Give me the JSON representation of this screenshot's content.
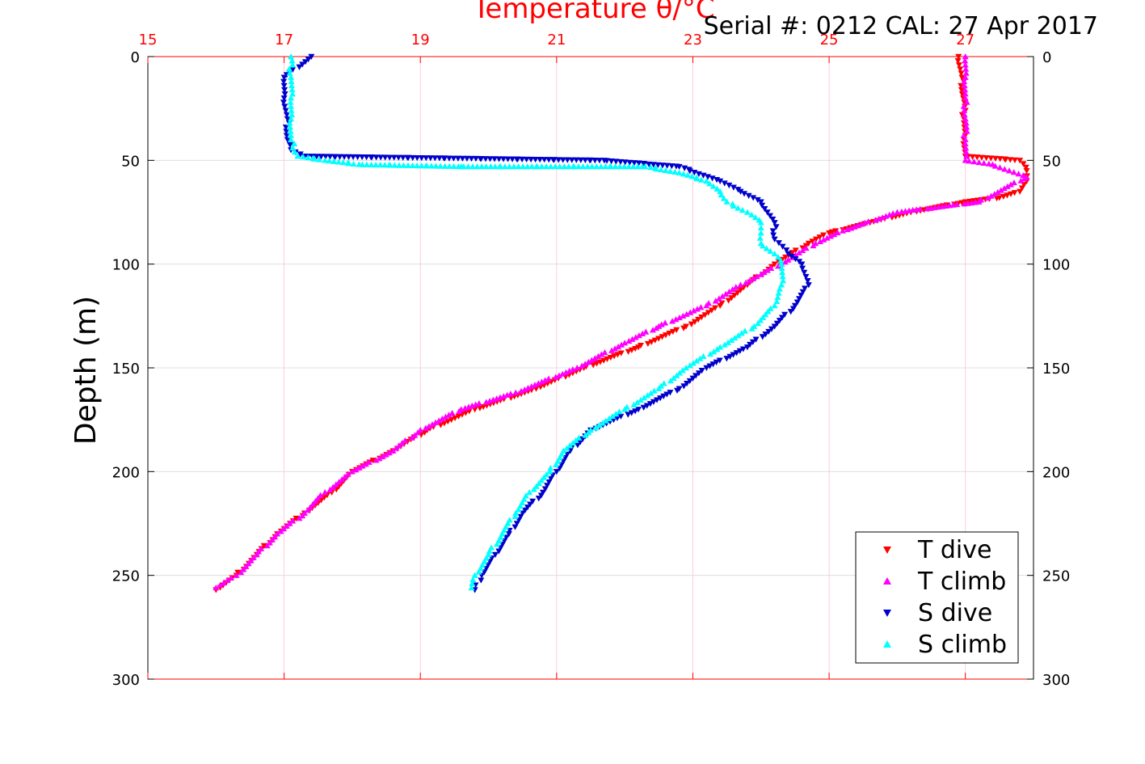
{
  "chart_data": {
    "type": "scatter",
    "title": "Serial #: 0212  CAL: 27 Apr 2017",
    "xlabel": "Temperature θ/°C",
    "ylabel": "Depth (m)",
    "xlim": [
      15,
      28
    ],
    "ylim": [
      0,
      300
    ],
    "x_ticks": [
      "15",
      "17",
      "19",
      "21",
      "23",
      "25",
      "27"
    ],
    "y_ticks": [
      "0",
      "50",
      "100",
      "150",
      "200",
      "250",
      "300"
    ],
    "grid": true,
    "legend_position": "bottom-right",
    "series": [
      {
        "name": "T dive",
        "color": "#ff0000",
        "marker": "triangle-down",
        "points": [
          [
            26.9,
            0
          ],
          [
            26.95,
            10
          ],
          [
            26.97,
            20
          ],
          [
            26.98,
            30
          ],
          [
            26.98,
            40
          ],
          [
            27.0,
            48
          ],
          [
            27.8,
            50
          ],
          [
            27.9,
            55
          ],
          [
            27.9,
            60
          ],
          [
            27.8,
            65
          ],
          [
            27.5,
            68
          ],
          [
            27.0,
            70
          ],
          [
            26.2,
            75
          ],
          [
            25.6,
            80
          ],
          [
            25.0,
            85
          ],
          [
            24.7,
            90
          ],
          [
            24.2,
            100
          ],
          [
            23.8,
            110
          ],
          [
            23.4,
            120
          ],
          [
            22.9,
            130
          ],
          [
            22.2,
            140
          ],
          [
            21.4,
            150
          ],
          [
            20.7,
            160
          ],
          [
            19.8,
            170
          ],
          [
            19.1,
            180
          ],
          [
            18.6,
            190
          ],
          [
            18.0,
            200
          ],
          [
            17.7,
            210
          ],
          [
            17.3,
            220
          ],
          [
            16.9,
            230
          ],
          [
            16.6,
            240
          ],
          [
            16.3,
            250
          ],
          [
            16.0,
            257
          ]
        ]
      },
      {
        "name": "T climb",
        "color": "#ff00ff",
        "marker": "triangle-up",
        "points": [
          [
            27.0,
            0
          ],
          [
            27.0,
            10
          ],
          [
            27.0,
            20
          ],
          [
            27.0,
            30
          ],
          [
            27.0,
            40
          ],
          [
            27.0,
            50
          ],
          [
            27.4,
            52
          ],
          [
            27.9,
            58
          ],
          [
            27.2,
            70
          ],
          [
            26.0,
            75
          ],
          [
            25.2,
            84
          ],
          [
            24.8,
            90
          ],
          [
            24.4,
            98
          ],
          [
            24.0,
            105
          ],
          [
            23.7,
            110
          ],
          [
            23.2,
            120
          ],
          [
            22.5,
            130
          ],
          [
            22.0,
            138
          ],
          [
            21.3,
            150
          ],
          [
            20.4,
            162
          ],
          [
            19.6,
            170
          ],
          [
            19.0,
            180
          ],
          [
            18.6,
            190
          ],
          [
            18.0,
            200
          ],
          [
            17.6,
            210
          ],
          [
            17.3,
            220
          ],
          [
            16.9,
            230
          ],
          [
            16.6,
            240
          ],
          [
            16.3,
            250
          ],
          [
            16.0,
            256
          ]
        ]
      },
      {
        "name": "S dive",
        "color": "#0000cc",
        "marker": "triangle-down",
        "points": [
          [
            17.4,
            0
          ],
          [
            17.0,
            10
          ],
          [
            17.0,
            20
          ],
          [
            17.05,
            30
          ],
          [
            17.05,
            40
          ],
          [
            17.1,
            45
          ],
          [
            17.3,
            48
          ],
          [
            21.7,
            50
          ],
          [
            22.8,
            53
          ],
          [
            23.4,
            60
          ],
          [
            23.7,
            65
          ],
          [
            24.0,
            70
          ],
          [
            24.2,
            80
          ],
          [
            24.2,
            88
          ],
          [
            24.4,
            95
          ],
          [
            24.6,
            100
          ],
          [
            24.7,
            110
          ],
          [
            24.5,
            120
          ],
          [
            24.2,
            130
          ],
          [
            23.8,
            140
          ],
          [
            23.2,
            150
          ],
          [
            22.8,
            160
          ],
          [
            22.2,
            170
          ],
          [
            21.5,
            180
          ],
          [
            21.2,
            190
          ],
          [
            21.0,
            200
          ],
          [
            20.8,
            210
          ],
          [
            20.5,
            220
          ],
          [
            20.3,
            230
          ],
          [
            20.1,
            240
          ],
          [
            19.9,
            250
          ],
          [
            19.8,
            257
          ]
        ]
      },
      {
        "name": "S climb",
        "color": "#00ffff",
        "marker": "triangle-up",
        "points": [
          [
            17.1,
            0
          ],
          [
            17.1,
            10
          ],
          [
            17.1,
            20
          ],
          [
            17.1,
            30
          ],
          [
            17.1,
            40
          ],
          [
            17.2,
            48
          ],
          [
            17.6,
            50
          ],
          [
            18.1,
            52
          ],
          [
            19.6,
            53
          ],
          [
            22.3,
            53
          ],
          [
            22.8,
            56
          ],
          [
            23.2,
            60
          ],
          [
            23.4,
            65
          ],
          [
            23.5,
            70
          ],
          [
            23.8,
            75
          ],
          [
            24.0,
            80
          ],
          [
            24.0,
            85
          ],
          [
            24.0,
            90
          ],
          [
            24.2,
            95
          ],
          [
            24.3,
            100
          ],
          [
            24.3,
            110
          ],
          [
            24.2,
            120
          ],
          [
            23.9,
            130
          ],
          [
            23.4,
            140
          ],
          [
            22.9,
            150
          ],
          [
            22.5,
            160
          ],
          [
            22.0,
            170
          ],
          [
            21.5,
            180
          ],
          [
            21.1,
            190
          ],
          [
            20.9,
            200
          ],
          [
            20.6,
            210
          ],
          [
            20.4,
            220
          ],
          [
            20.2,
            230
          ],
          [
            20.0,
            240
          ],
          [
            19.8,
            250
          ],
          [
            19.75,
            256
          ]
        ]
      }
    ]
  }
}
